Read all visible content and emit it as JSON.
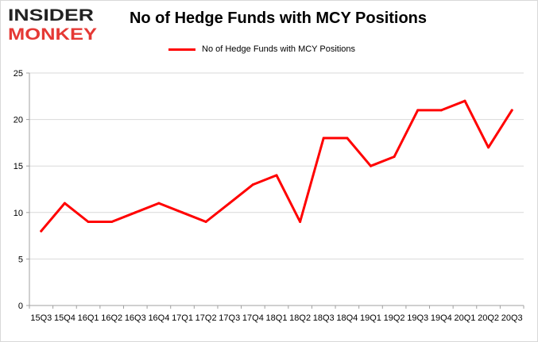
{
  "brand": {
    "line1": "INSIDER",
    "line2": "MONKEY",
    "colors": {
      "dark": "#222222",
      "red": "#e53935"
    }
  },
  "chart_data": {
    "type": "line",
    "title": "No of Hedge Funds with MCY Positions",
    "categories": [
      "15Q3",
      "15Q4",
      "16Q1",
      "16Q2",
      "16Q3",
      "16Q4",
      "17Q1",
      "17Q2",
      "17Q3",
      "17Q4",
      "18Q1",
      "18Q2",
      "18Q3",
      "18Q4",
      "19Q1",
      "19Q2",
      "19Q3",
      "19Q4",
      "20Q1",
      "20Q2",
      "20Q3"
    ],
    "series": [
      {
        "name": "No of Hedge Funds with MCY Positions",
        "color": "#ff0000",
        "values": [
          8,
          11,
          9,
          9,
          10,
          11,
          10,
          9,
          11,
          13,
          14,
          9,
          18,
          18,
          15,
          16,
          21,
          21,
          22,
          17,
          21
        ]
      }
    ],
    "ylim": [
      0,
      25
    ],
    "yticks": [
      0,
      5,
      10,
      15,
      20,
      25
    ],
    "grid": true,
    "legend_position": "top"
  }
}
